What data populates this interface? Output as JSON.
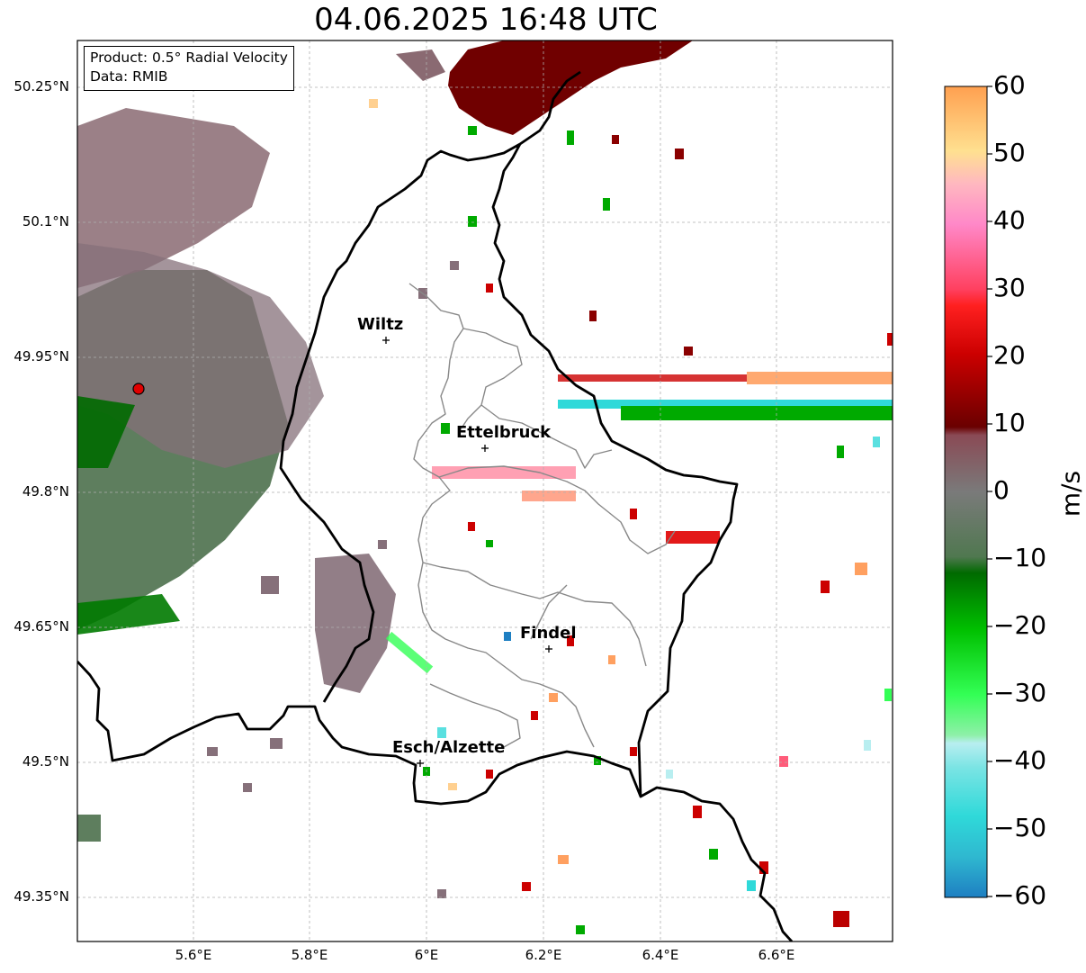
{
  "title": "04.06.2025 16:48 UTC",
  "info": {
    "product": "Product: 0.5° Radial Velocity",
    "source": "Data: RMIB"
  },
  "axes": {
    "lat_ticks": [
      "50.25°N",
      "50.1°N",
      "49.95°N",
      "49.8°N",
      "49.65°N",
      "49.5°N",
      "49.35°N"
    ],
    "lon_ticks": [
      "5.6°E",
      "5.8°E",
      "6°E",
      "6.2°E",
      "6.4°E",
      "6.6°E"
    ]
  },
  "cities": [
    {
      "name": "Wiltz",
      "lon": 5.93,
      "lat": 49.97
    },
    {
      "name": "Ettelbruck",
      "lon": 6.1,
      "lat": 49.85
    },
    {
      "name": "Findel",
      "lon": 6.21,
      "lat": 49.63
    },
    {
      "name": "Esch/Alzette",
      "lon": 5.99,
      "lat": 49.5
    }
  ],
  "radar_site": {
    "lon": 5.51,
    "lat": 49.91
  },
  "colorbar": {
    "label": "m/s",
    "ticks": [
      "60",
      "50",
      "40",
      "30",
      "20",
      "10",
      "0",
      "−10",
      "−20",
      "−30",
      "−40",
      "−50",
      "−60"
    ],
    "range": [
      -60,
      60
    ]
  },
  "colors": {
    "strong_toward": "#1e7fc2",
    "cyan": "#2fd9d9",
    "light_cyan": "#b0eef0",
    "green": "#00b800",
    "dark_green": "#006400",
    "gray_green": "#5a7a5a",
    "gray_mauve": "#7e6068",
    "dark_red": "#7a0000",
    "red": "#e50000",
    "pink": "#ff5c7a",
    "light_pink": "#ffb0c0",
    "orange": "#ffa060"
  }
}
